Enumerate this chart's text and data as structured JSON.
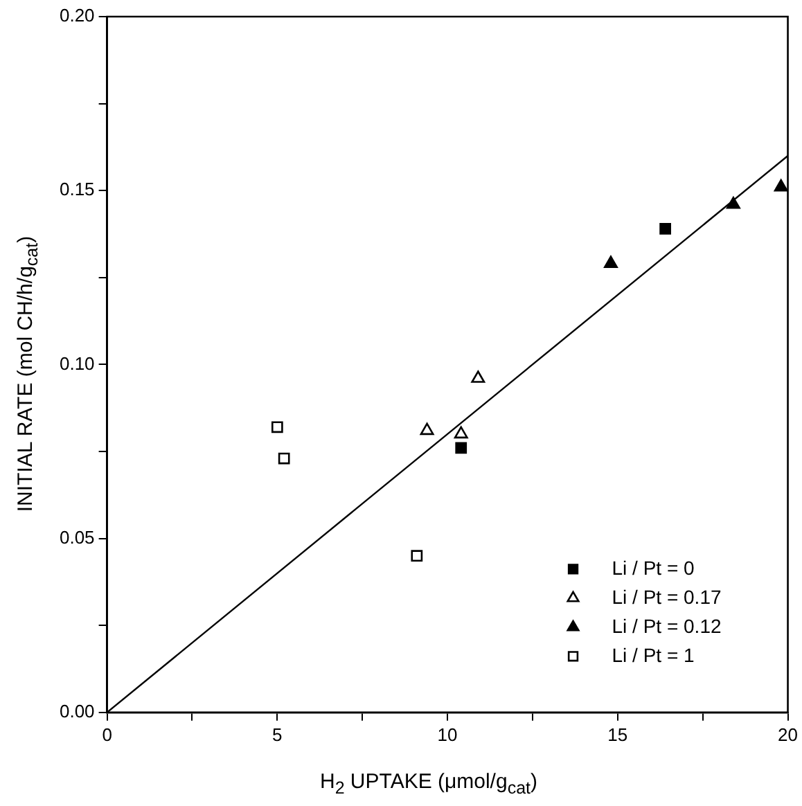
{
  "chart_data": {
    "type": "scatter",
    "xlabel": "H$_{2}$ UPTAKE (μmol/g$_{cat}$)",
    "ylabel": "INITIAL RATE (mol CH/h/g$_{cat}$)",
    "xlim": [
      0,
      20
    ],
    "ylim": [
      0,
      0.2
    ],
    "xticks": [
      0,
      {
        "value": 2.5,
        "label": null
      },
      5,
      {
        "value": 7.5,
        "label": null
      },
      10,
      {
        "value": 12.5,
        "label": null
      },
      15,
      {
        "value": 17.5,
        "label": null
      },
      20
    ],
    "yticks": [
      {
        "value": 0,
        "label": "0.00"
      },
      {
        "value": 0.025,
        "label": null
      },
      {
        "value": 0.05,
        "label": "0.05"
      },
      {
        "value": 0.075,
        "label": null
      },
      {
        "value": 0.1,
        "label": "0.10"
      },
      {
        "value": 0.125,
        "label": null
      },
      {
        "value": 0.15,
        "label": "0.15"
      },
      {
        "value": 0.175,
        "label": null
      },
      {
        "value": 0.2,
        "label": "0.20"
      }
    ],
    "grid": false,
    "legend": "bottom right",
    "series": [
      {
        "name": "Li / Pt = 0",
        "color": "#000000",
        "marker": "square",
        "x": [
          10.4,
          16.4
        ],
        "values": [
          0.076,
          0.139
        ]
      },
      {
        "name": "Li / Pt = 0.17",
        "color": "#ffffff",
        "marker": "triangle",
        "x": [
          9.4,
          10.4,
          10.9
        ],
        "values": [
          0.081,
          0.08,
          0.096
        ]
      },
      {
        "name": "Li / Pt = 0.12",
        "color": "#000000",
        "marker": "triangle",
        "x": [
          14.8,
          18.4,
          19.8
        ],
        "values": [
          0.129,
          0.146,
          0.151
        ]
      },
      {
        "name": "Li / Pt = 1",
        "color": "#ffffff",
        "marker": "square",
        "x": [
          5.0,
          5.2,
          9.1
        ],
        "values": [
          0.082,
          0.073,
          0.045
        ]
      },
      {
        "type": "line",
        "color": "#000000",
        "marker": "none",
        "line_style": "solid",
        "x": [
          0,
          20
        ],
        "values": [
          0,
          0.16
        ]
      }
    ]
  }
}
